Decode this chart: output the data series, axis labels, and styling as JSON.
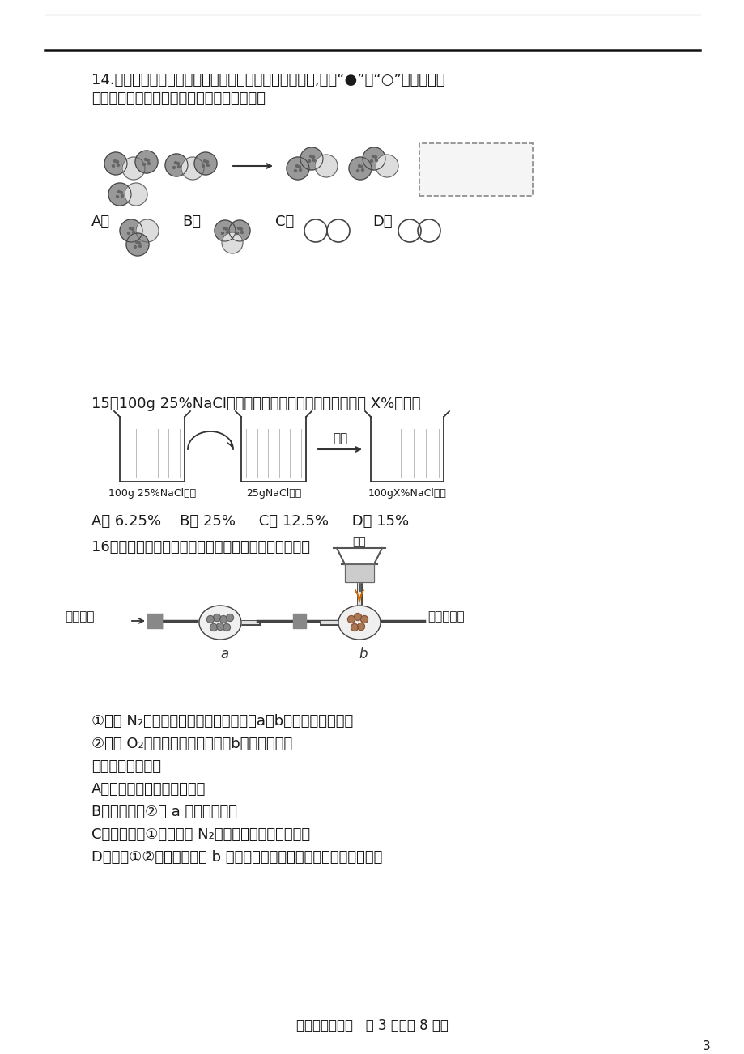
{
  "bg_color": "#ffffff",
  "text_color": "#1a1a1a",
  "page_number": "3",
  "q14_text1": "14.如图为某化学反应在催化剂作用下的微观模拟示意图,其中“●”和“○”分别表示氢",
  "q14_text2": "原子和氧原子。虚线框内应填的微观示意图是",
  "q15_text": "15．100g 25%NaCl溶液如图处理后，所得溶液质量分数 X%的值是",
  "q15_choices": "A． 6.25%    B． 25%     C． 12.5%     D． 15%",
  "q16_text": "16．依据如图进行实验（夹持仪器略去）。实验过程：",
  "q16_step1": "①通入 N₂，点燃酒精灯，一段时间后，a、b中均无明显现象；",
  "q16_step2": "②改通 O₂片刻，息灭酒精灯后，b中红磷燃烧。",
  "q16_sub": "下列说法错误的是",
  "q16_A": "A．红磷燃烧，产生大量白雾",
  "q16_B": "B．实验过程②的 a 中无明显现象",
  "q16_C": "C．实验过程①要先通入 N₂一段时间，再点燃酒精灯",
  "q16_D": "D．对比①②两个实验过程 b 中的实验现象，可知红磷不易与氮气反应",
  "footer": "九年级化学试题   第 3 页（共 8 页）"
}
